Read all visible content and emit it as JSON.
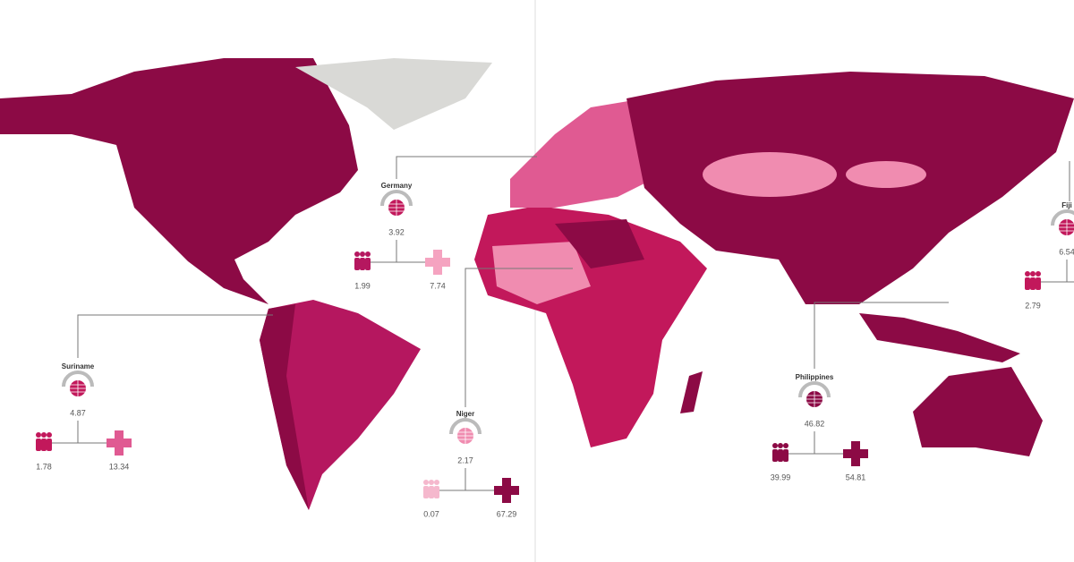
{
  "callouts": [
    {
      "name": "Germany",
      "index": 3.92,
      "population": 1.99,
      "health": 7.74
    },
    {
      "name": "Suriname",
      "index": 4.87,
      "population": 1.78,
      "health": 13.34
    },
    {
      "name": "Niger",
      "index": 2.17,
      "population": 0.07,
      "health": 67.29
    },
    {
      "name": "Philippines",
      "index": 46.82,
      "population": 39.99,
      "health": 54.81
    },
    {
      "name": "Fiji",
      "index": 6.54,
      "population": 2.79
    }
  ]
}
